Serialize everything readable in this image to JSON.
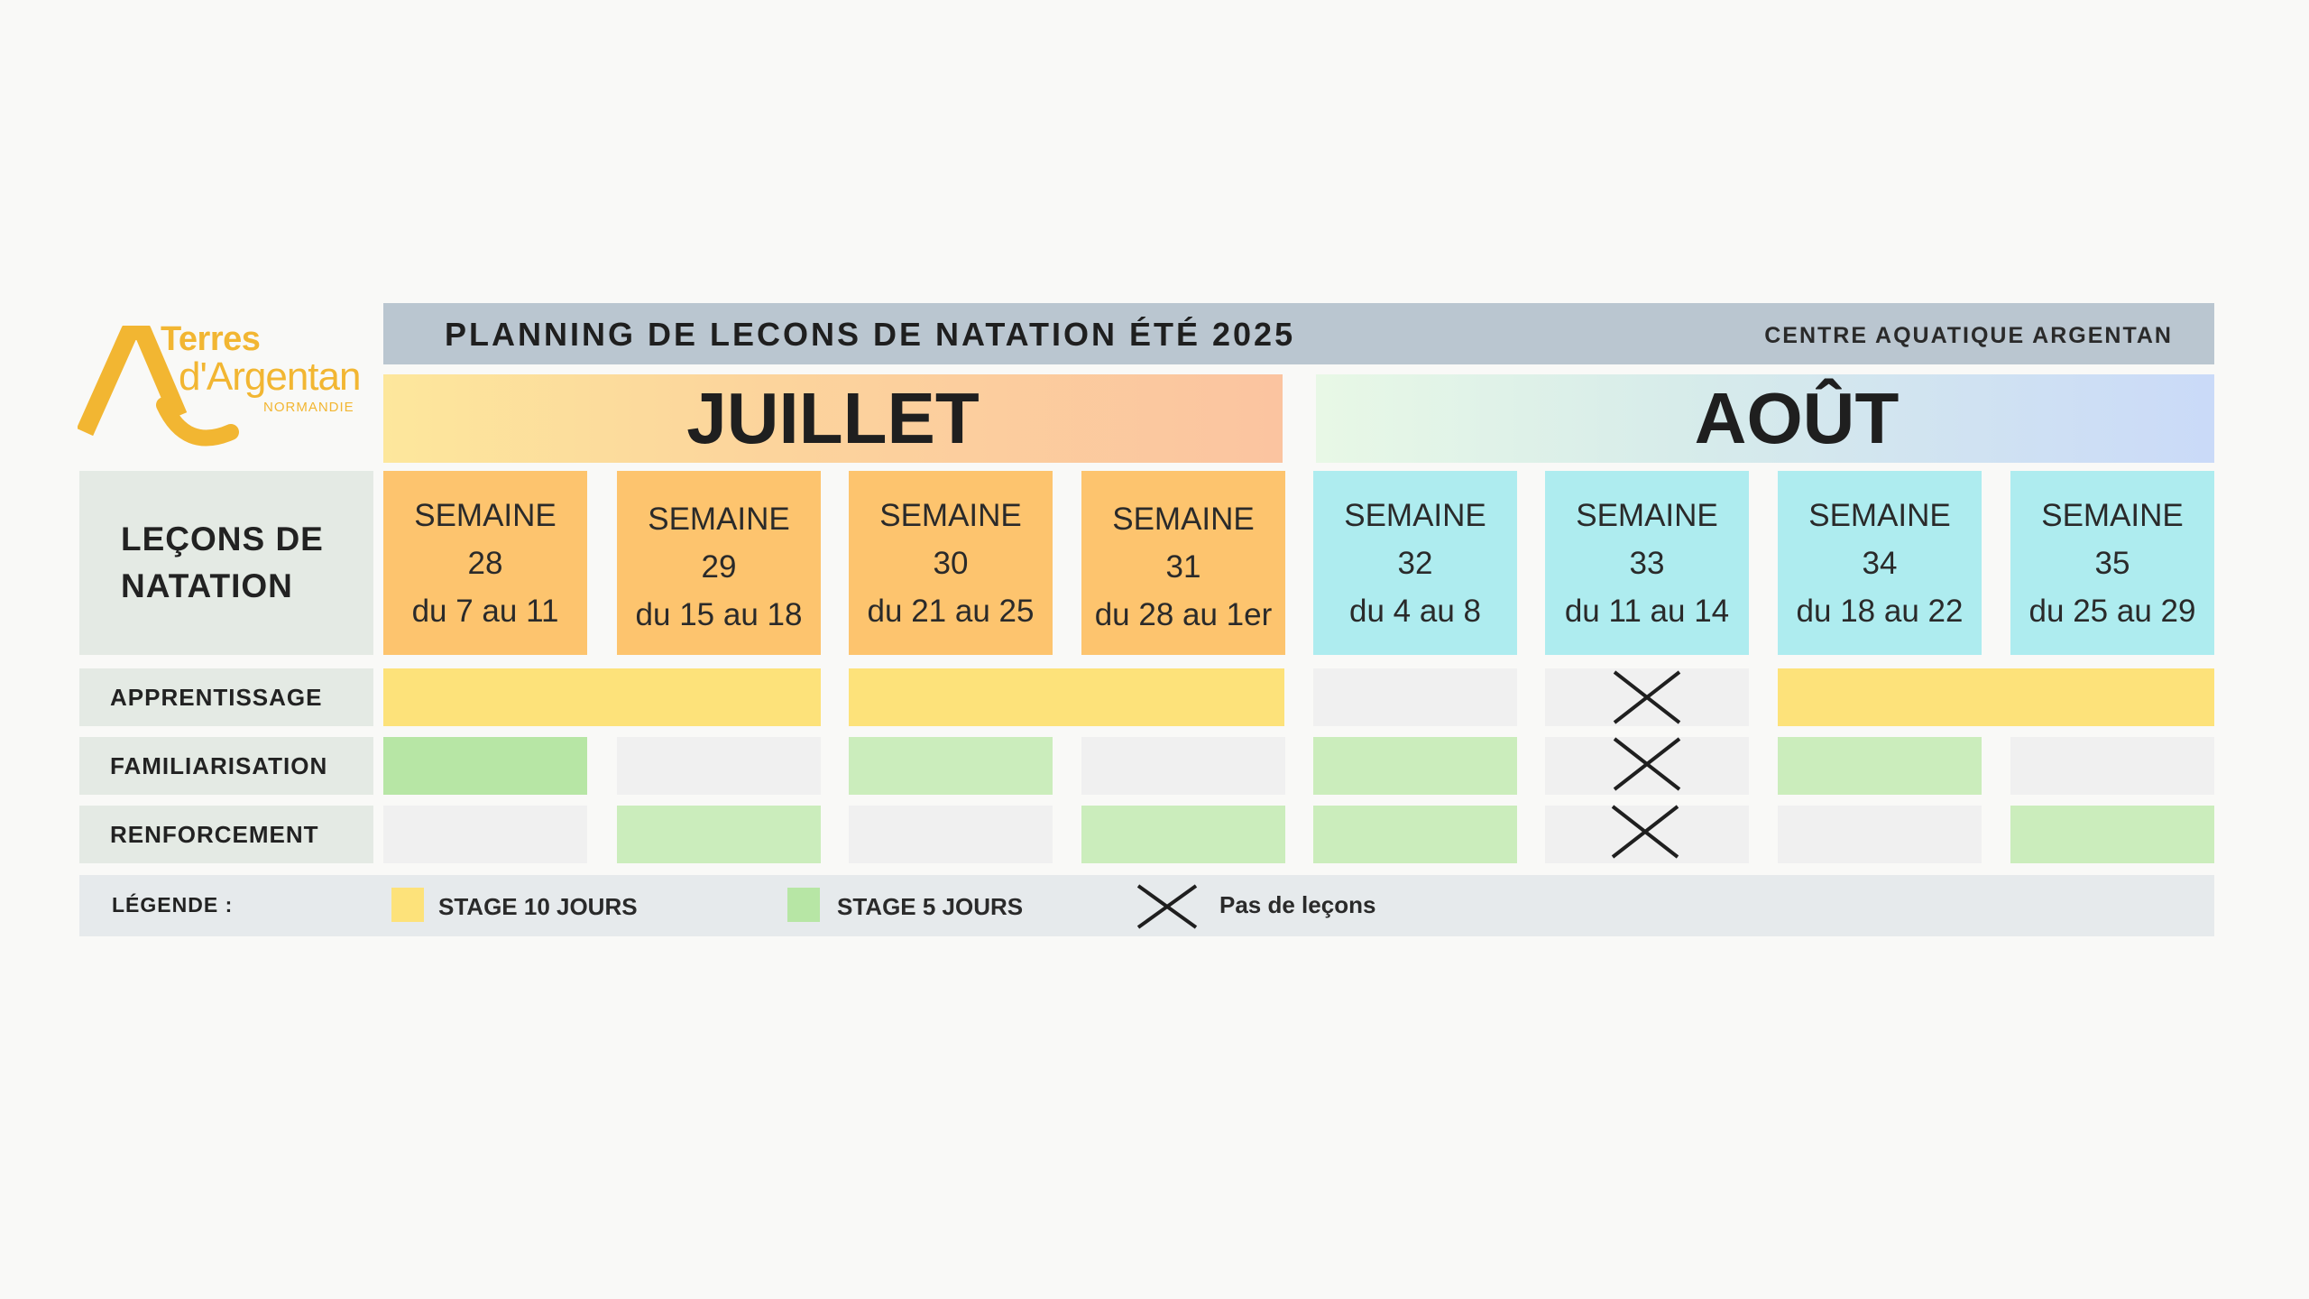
{
  "logo": {
    "line1": "Terres",
    "line2": "d'Argentan",
    "line3": "NORMANDIE",
    "color": "#f2b632"
  },
  "title": {
    "main": "PLANNING DE LECONS DE NATATION ÉTÉ 2025",
    "right": "CENTRE AQUATIQUE ARGENTAN"
  },
  "months": {
    "july": "JUILLET",
    "august": "AOÛT"
  },
  "side": {
    "lessons_line1": "LEÇONS DE",
    "lessons_line2": "NATATION",
    "rows": [
      "APPRENTISSAGE",
      "FAMILIARISATION",
      "RENFORCEMENT"
    ]
  },
  "weeks": [
    {
      "label": "SEMAINE",
      "number": "28",
      "dates": "du 7 au 11"
    },
    {
      "label": "SEMAINE",
      "number": "29",
      "dates": "du 15 au 18"
    },
    {
      "label": "SEMAINE",
      "number": "30",
      "dates": "du 21 au 25"
    },
    {
      "label": "SEMAINE",
      "number": "31",
      "dates": "du 28 au 1er"
    },
    {
      "label": "SEMAINE",
      "number": "32",
      "dates": "du 4 au 8"
    },
    {
      "label": "SEMAINE",
      "number": "33",
      "dates": "du 11 au 14"
    },
    {
      "label": "SEMAINE",
      "number": "34",
      "dates": "du 18 au 22"
    },
    {
      "label": "SEMAINE",
      "number": "35",
      "dates": "du 25 au 29"
    }
  ],
  "schedule": {
    "APPRENTISSAGE": [
      "stage10",
      "stage10",
      "stage10",
      "stage10",
      "none",
      "no-lessons",
      "stage10",
      "stage10"
    ],
    "FAMILIARISATION": [
      "stage5",
      "none",
      "stage5",
      "none",
      "stage5",
      "no-lessons",
      "stage5",
      "none"
    ],
    "RENFORCEMENT": [
      "none",
      "stage5",
      "none",
      "stage5",
      "stage5",
      "no-lessons",
      "none",
      "stage5"
    ]
  },
  "legend": {
    "title": "LÉGENDE :",
    "stage10": "STAGE 10 JOURS",
    "stage5": "STAGE 5 JOURS",
    "none": "Pas de leçons"
  },
  "colors": {
    "stage10": "#fde27a",
    "stage5": "#cbedbc",
    "july_week": "#fdc46e",
    "august_week": "#aeecef"
  }
}
